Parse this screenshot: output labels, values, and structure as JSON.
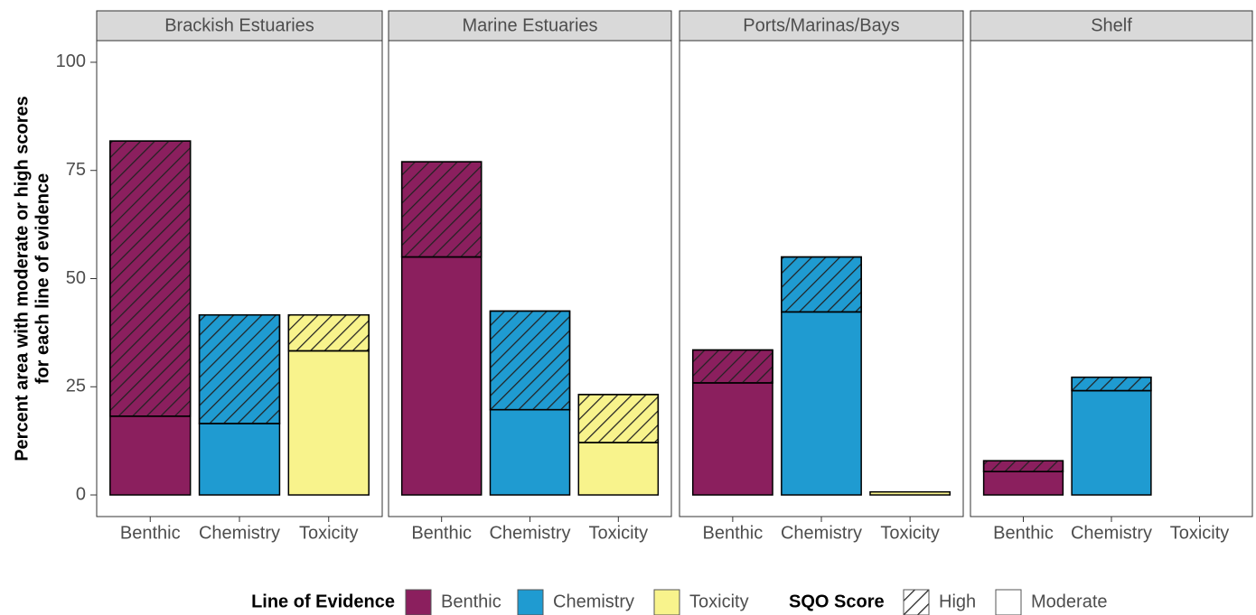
{
  "chart_data": {
    "type": "bar",
    "stacked": true,
    "ylabel": [
      "Percent area with moderate or high scores",
      "for each line of evidence"
    ],
    "ylim": [
      -5,
      105
    ],
    "yticks": [
      0,
      25,
      50,
      75,
      100
    ],
    "categories": [
      "Benthic",
      "Chemistry",
      "Toxicity"
    ],
    "category_colors": [
      "#8b1f5e",
      "#1f9bd1",
      "#f8f38c"
    ],
    "legend_titles": {
      "color": "Line of Evidence",
      "pattern": "SQO Score"
    },
    "sqo_scores": [
      "High",
      "Moderate"
    ],
    "facets": [
      {
        "title": "Brackish Estuaries",
        "moderate": [
          18.2,
          16.5,
          33.3
        ],
        "high": [
          63.6,
          25.1,
          8.3
        ]
      },
      {
        "title": "Marine Estuaries",
        "moderate": [
          55.0,
          19.7,
          12.1
        ],
        "high": [
          22.0,
          22.8,
          11.1
        ]
      },
      {
        "title": "Ports/Marinas/Bays",
        "moderate": [
          25.9,
          42.3,
          0.7
        ],
        "high": [
          7.6,
          12.7,
          0
        ]
      },
      {
        "title": "Shelf",
        "moderate": [
          5.4,
          24.1,
          0
        ],
        "high": [
          2.5,
          3.1,
          0
        ]
      }
    ]
  }
}
